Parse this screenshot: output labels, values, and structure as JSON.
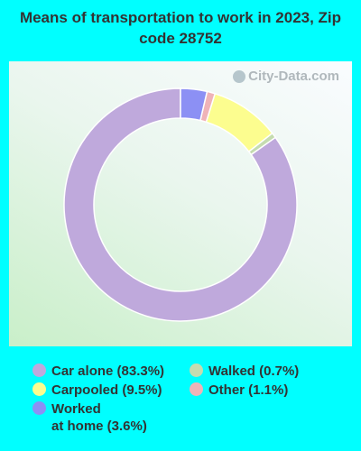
{
  "chart_data": {
    "type": "pie",
    "title": "Means of transportation to work in 2023, Zip code 28752",
    "categories": [
      "Car alone",
      "Walked",
      "Carpooled",
      "Other",
      "Worked at home"
    ],
    "values": [
      83.3,
      0.7,
      9.5,
      1.1,
      3.6
    ],
    "legend_labels": [
      "Car alone (83.3%)",
      "Walked (0.7%)",
      "Carpooled (9.5%)",
      "Other (1.1%)",
      "Worked\nat home (3.6%)"
    ],
    "colors": [
      "#bfa9dc",
      "#c5dcb0",
      "#fcfd8f",
      "#efb3b8",
      "#8c90f4"
    ],
    "legend_placement": "bottom"
  },
  "watermark": "City-Data.com"
}
